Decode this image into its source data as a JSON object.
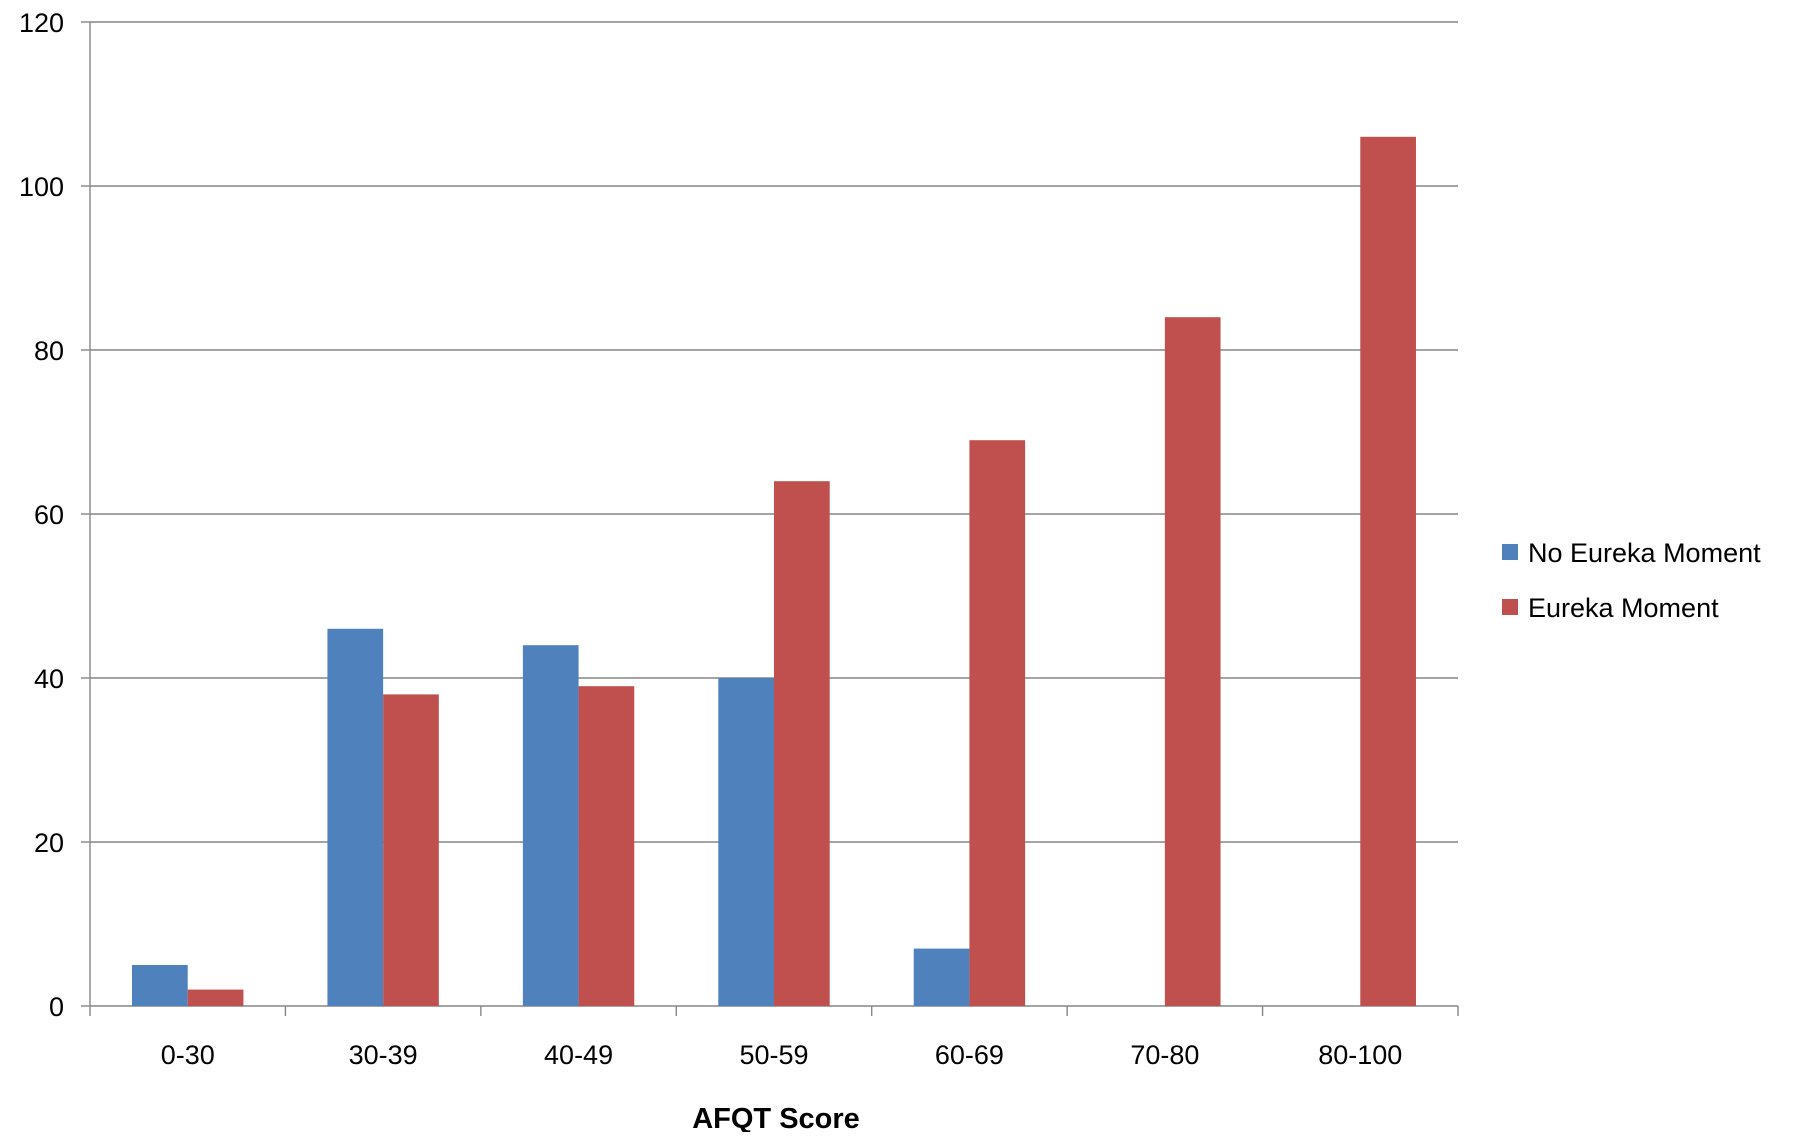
{
  "chart_data": {
    "type": "bar",
    "title": "",
    "xlabel": "AFQT Score",
    "ylabel": "",
    "categories": [
      "0-30",
      "30-39",
      "40-49",
      "50-59",
      "60-69",
      "70-80",
      "80-100"
    ],
    "series": [
      {
        "name": "No Eureka Moment",
        "color": "#4F81BD",
        "values": [
          5,
          46,
          44,
          40,
          7,
          0,
          0
        ]
      },
      {
        "name": "Eureka Moment",
        "color": "#C0504D",
        "values": [
          2,
          38,
          39,
          64,
          69,
          84,
          106
        ]
      }
    ],
    "ylim": [
      0,
      120
    ],
    "yticks": [
      0,
      20,
      40,
      60,
      80,
      100,
      120
    ],
    "grid": true,
    "legend_position": "right"
  }
}
